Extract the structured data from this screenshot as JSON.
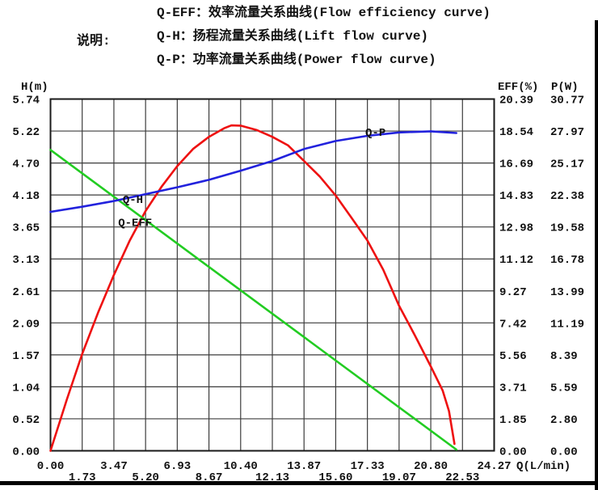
{
  "legend": {
    "title": "说明:",
    "items": [
      {
        "text": "Q-EFF：效率流量关系曲线(Flow efficiency curve)"
      },
      {
        "text": "Q-H：扬程流量关系曲线(Lift flow curve)"
      },
      {
        "text": "Q-P：功率流量关系曲线(Power flow curve)"
      }
    ]
  },
  "chart_data": {
    "type": "line",
    "grid": true,
    "background": "#ffffff",
    "grid_color": "#3c3c3c",
    "border_color": "#1a1a1a",
    "x_axis": {
      "label": "Q(L/min)",
      "min": 0,
      "max": 24.27,
      "ticks": [
        "0.00",
        "1.73",
        "3.47",
        "5.20",
        "6.93",
        "8.67",
        "10.40",
        "12.13",
        "13.87",
        "15.60",
        "17.33",
        "19.07",
        "20.80",
        "22.53",
        "24.27"
      ]
    },
    "y_axis_left": {
      "label": "H(m)",
      "min": 0,
      "max": 5.74,
      "ticks": [
        "5.74",
        "5.22",
        "4.70",
        "4.18",
        "3.65",
        "3.13",
        "2.61",
        "2.09",
        "1.57",
        "1.04",
        "0.52",
        "0.00"
      ]
    },
    "y_axis_right_eff": {
      "label": "EFF(%)",
      "min": 0,
      "max": 20.39,
      "ticks": [
        "20.39",
        "18.54",
        "16.69",
        "14.83",
        "12.98",
        "11.12",
        "9.27",
        "7.42",
        "5.56",
        "3.71",
        "1.85",
        "0.00"
      ]
    },
    "y_axis_right_p": {
      "label": "P(W)",
      "min": 0,
      "max": 30.77,
      "ticks": [
        "30.77",
        "27.97",
        "25.17",
        "22.38",
        "19.58",
        "16.78",
        "13.99",
        "11.19",
        "8.39",
        "5.59",
        "2.80",
        "0.00"
      ]
    },
    "series": [
      {
        "name": "Q-EFF",
        "axis": "eff",
        "color": "#ee1111",
        "points": [
          [
            0,
            0
          ],
          [
            0.9,
            3.0
          ],
          [
            1.73,
            5.6
          ],
          [
            2.6,
            8.0
          ],
          [
            3.47,
            10.2
          ],
          [
            4.34,
            12.2
          ],
          [
            5.2,
            13.9
          ],
          [
            6.07,
            15.3
          ],
          [
            6.93,
            16.5
          ],
          [
            7.8,
            17.5
          ],
          [
            8.67,
            18.2
          ],
          [
            9.5,
            18.7
          ],
          [
            9.9,
            18.86
          ],
          [
            10.4,
            18.85
          ],
          [
            11.27,
            18.6
          ],
          [
            12.13,
            18.2
          ],
          [
            13,
            17.7
          ],
          [
            13.87,
            16.8
          ],
          [
            14.73,
            15.9
          ],
          [
            15.6,
            14.8
          ],
          [
            16.47,
            13.5
          ],
          [
            17.33,
            12.2
          ],
          [
            18.2,
            10.5
          ],
          [
            19.07,
            8.4
          ],
          [
            19.93,
            6.7
          ],
          [
            20.8,
            4.9
          ],
          [
            21.45,
            3.5
          ],
          [
            21.8,
            2.3
          ],
          [
            22.1,
            0.4
          ]
        ]
      },
      {
        "name": "Q-H",
        "axis": "h",
        "color": "#22cc22",
        "points": [
          [
            0,
            4.91
          ],
          [
            22.2,
            0.02
          ]
        ]
      },
      {
        "name": "Q-P",
        "axis": "p",
        "color": "#2222dd",
        "points": [
          [
            0,
            20.9
          ],
          [
            1.73,
            21.35
          ],
          [
            3.47,
            21.85
          ],
          [
            5.2,
            22.45
          ],
          [
            6.93,
            23.05
          ],
          [
            8.67,
            23.7
          ],
          [
            10.4,
            24.5
          ],
          [
            12.13,
            25.35
          ],
          [
            13.87,
            26.4
          ],
          [
            15.6,
            27.1
          ],
          [
            17.33,
            27.55
          ],
          [
            19.07,
            27.85
          ],
          [
            20.8,
            27.95
          ],
          [
            22.2,
            27.8
          ]
        ]
      }
    ],
    "curve_labels": [
      {
        "text": "Q-H",
        "x_q": 3.95,
        "y_h": 4.1
      },
      {
        "text": "Q-EFF",
        "x_q": 3.7,
        "y_h": 3.72
      },
      {
        "text": "Q-P",
        "x_q": 17.22,
        "y_h": 5.19
      }
    ]
  }
}
